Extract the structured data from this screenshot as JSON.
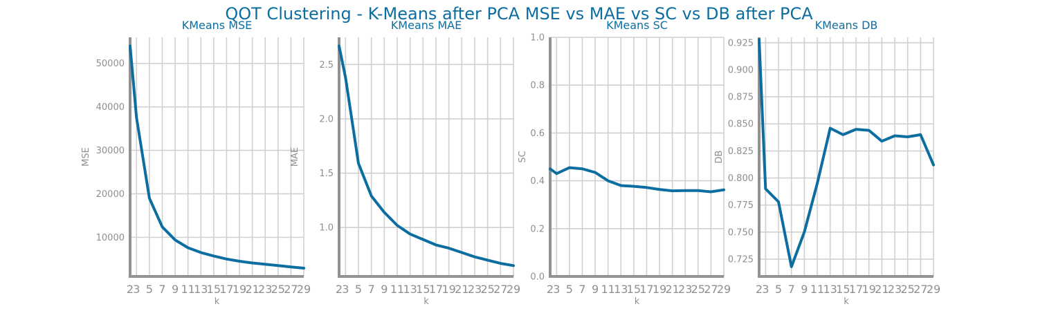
{
  "title": "QOT Clustering - K-Means after PCA MSE vs MAE vs SC vs DB after PCA",
  "colors": {
    "line": "#0c6ea0",
    "title": "#0c6ea0",
    "grid": "#d0d0d0",
    "axis": "#929292",
    "text": "#8f8f8f"
  },
  "chart_data": [
    {
      "type": "line",
      "title": "KMeans MSE",
      "xlabel": "k",
      "ylabel": "MSE",
      "x": [
        2,
        3,
        5,
        7,
        9,
        11,
        13,
        15,
        17,
        19,
        21,
        23,
        25,
        27,
        29
      ],
      "xticks": [
        "2",
        "3",
        "5",
        "7",
        "9",
        "11",
        "13",
        "15",
        "17",
        "19",
        "21",
        "23",
        "25",
        "27",
        "29"
      ],
      "series": [
        {
          "values": [
            54000,
            37500,
            19000,
            12400,
            9400,
            7600,
            6500,
            5700,
            5000,
            4500,
            4100,
            3800,
            3500,
            3200,
            2900
          ]
        }
      ],
      "xlim": [
        2,
        29
      ],
      "ylim": [
        1000,
        56000
      ],
      "yticks": [
        10000,
        20000,
        30000,
        40000,
        50000
      ],
      "grid": true
    },
    {
      "type": "line",
      "title": "KMeans MAE",
      "xlabel": "k",
      "ylabel": "MAE",
      "x": [
        2,
        3,
        5,
        7,
        9,
        11,
        13,
        15,
        17,
        19,
        21,
        23,
        25,
        27,
        29
      ],
      "xticks": [
        "2",
        "3",
        "5",
        "7",
        "9",
        "11",
        "13",
        "15",
        "17",
        "19",
        "21",
        "23",
        "25",
        "27",
        "29"
      ],
      "series": [
        {
          "values": [
            2.67,
            2.38,
            1.59,
            1.29,
            1.14,
            1.02,
            0.94,
            0.89,
            0.84,
            0.81,
            0.77,
            0.73,
            0.7,
            0.67,
            0.65
          ]
        }
      ],
      "xlim": [
        2,
        29
      ],
      "ylim": [
        0.55,
        2.75
      ],
      "yticks": [
        1.0,
        1.5,
        2.0,
        2.5
      ],
      "grid": true
    },
    {
      "type": "line",
      "title": "KMeans SC",
      "xlabel": "k",
      "ylabel": "SC",
      "x": [
        2,
        3,
        5,
        7,
        9,
        11,
        13,
        15,
        17,
        19,
        21,
        23,
        25,
        27,
        29
      ],
      "xticks": [
        "2",
        "3",
        "5",
        "7",
        "9",
        "11",
        "13",
        "15",
        "17",
        "19",
        "21",
        "23",
        "25",
        "27",
        "29"
      ],
      "series": [
        {
          "values": [
            0.45,
            0.43,
            0.455,
            0.45,
            0.435,
            0.4,
            0.38,
            0.377,
            0.372,
            0.364,
            0.358,
            0.359,
            0.359,
            0.354,
            0.362
          ]
        }
      ],
      "xlim": [
        2,
        29
      ],
      "ylim": [
        0.0,
        1.0
      ],
      "yticks": [
        0.0,
        0.2,
        0.4,
        0.6,
        0.8,
        1.0
      ],
      "grid": true
    },
    {
      "type": "line",
      "title": "KMeans DB",
      "xlabel": "k",
      "ylabel": "DB",
      "x": [
        2,
        3,
        5,
        7,
        9,
        11,
        13,
        15,
        17,
        19,
        21,
        23,
        25,
        27,
        29
      ],
      "xticks": [
        "2",
        "3",
        "5",
        "7",
        "9",
        "11",
        "13",
        "15",
        "17",
        "19",
        "21",
        "23",
        "25",
        "27",
        "29"
      ],
      "series": [
        {
          "values": [
            0.928,
            0.79,
            0.778,
            0.718,
            0.75,
            0.795,
            0.846,
            0.84,
            0.845,
            0.844,
            0.834,
            0.839,
            0.838,
            0.84,
            0.812
          ]
        }
      ],
      "xlim": [
        2,
        29
      ],
      "ylim": [
        0.709,
        0.93
      ],
      "yticks": [
        0.725,
        0.75,
        0.775,
        0.8,
        0.825,
        0.85,
        0.875,
        0.9,
        0.925
      ],
      "grid": true
    }
  ]
}
